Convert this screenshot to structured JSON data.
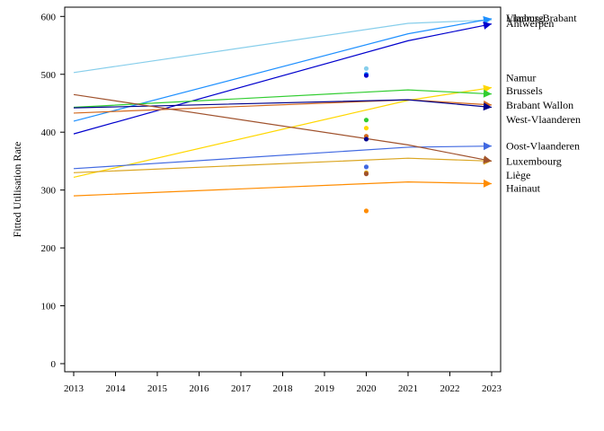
{
  "chart_data": {
    "type": "line",
    "ylabel": "Fitted Utilisation Rate",
    "xlabel": "",
    "xlim": [
      2013,
      2023
    ],
    "ylim": [
      0,
      610
    ],
    "x_ticks": [
      "2013",
      "2014",
      "2015",
      "2016",
      "2017",
      "2018",
      "2019",
      "2020",
      "2021",
      "2022",
      "2023"
    ],
    "y_ticks": [
      "0",
      "100",
      "200",
      "300",
      "400",
      "500",
      "600"
    ],
    "grid": false,
    "legend": "direct labels at line ends (right)",
    "series": [
      {
        "name": "Vlaams-Brabant",
        "color": "#87CEEB",
        "x": [
          2013,
          2021,
          2023
        ],
        "y": [
          503,
          588,
          594
        ],
        "observed_2020": 510,
        "label_y": 597
      },
      {
        "name": "Limburg",
        "color": "#1E90FF",
        "x": [
          2013,
          2021,
          2023
        ],
        "y": [
          419,
          570,
          596
        ],
        "observed_2020": 500,
        "label_y": 597
      },
      {
        "name": "Antwerpen",
        "color": "#0000CD",
        "x": [
          2013,
          2021,
          2023
        ],
        "y": [
          397,
          558,
          587
        ],
        "observed_2020": 498,
        "label_y": 588
      },
      {
        "name": "Namur",
        "color": "#FFD700",
        "x": [
          2013,
          2021,
          2023
        ],
        "y": [
          322,
          455,
          477
        ],
        "observed_2020": 407,
        "label_y": 494
      },
      {
        "name": "Brussels",
        "color": "#32CD32",
        "x": [
          2013,
          2021,
          2023
        ],
        "y": [
          443,
          473,
          466
        ],
        "observed_2020": 421,
        "label_y": 472
      },
      {
        "name": "Brabant Wallon",
        "color": "#D2691E",
        "x": [
          2013,
          2021,
          2023
        ],
        "y": [
          433,
          456,
          447
        ],
        "observed_2020": 393,
        "label_y": 447
      },
      {
        "name": "West-Vlaanderen",
        "color": "#00008B",
        "x": [
          2013,
          2021,
          2023
        ],
        "y": [
          442,
          456,
          443
        ],
        "observed_2020": 388,
        "label_y": 422
      },
      {
        "name": "Oost-Vlaanderen",
        "color": "#4169E1",
        "x": [
          2013,
          2021,
          2023
        ],
        "y": [
          337,
          374,
          376
        ],
        "observed_2020": 340,
        "label_y": 376
      },
      {
        "name": "Luxembourg",
        "color": "#DAA520",
        "x": [
          2013,
          2021,
          2023
        ],
        "y": [
          330,
          355,
          350
        ],
        "observed_2020": 330,
        "label_y": 350
      },
      {
        "name": "Liège",
        "color": "#A0522D",
        "x": [
          2013,
          2021,
          2023
        ],
        "y": [
          465,
          378,
          350
        ],
        "observed_2020": 328,
        "label_y": 326
      },
      {
        "name": "Hainaut",
        "color": "#FF8C00",
        "x": [
          2013,
          2021,
          2023
        ],
        "y": [
          290,
          314,
          311
        ],
        "observed_2020": 264,
        "label_y": 303
      }
    ]
  }
}
